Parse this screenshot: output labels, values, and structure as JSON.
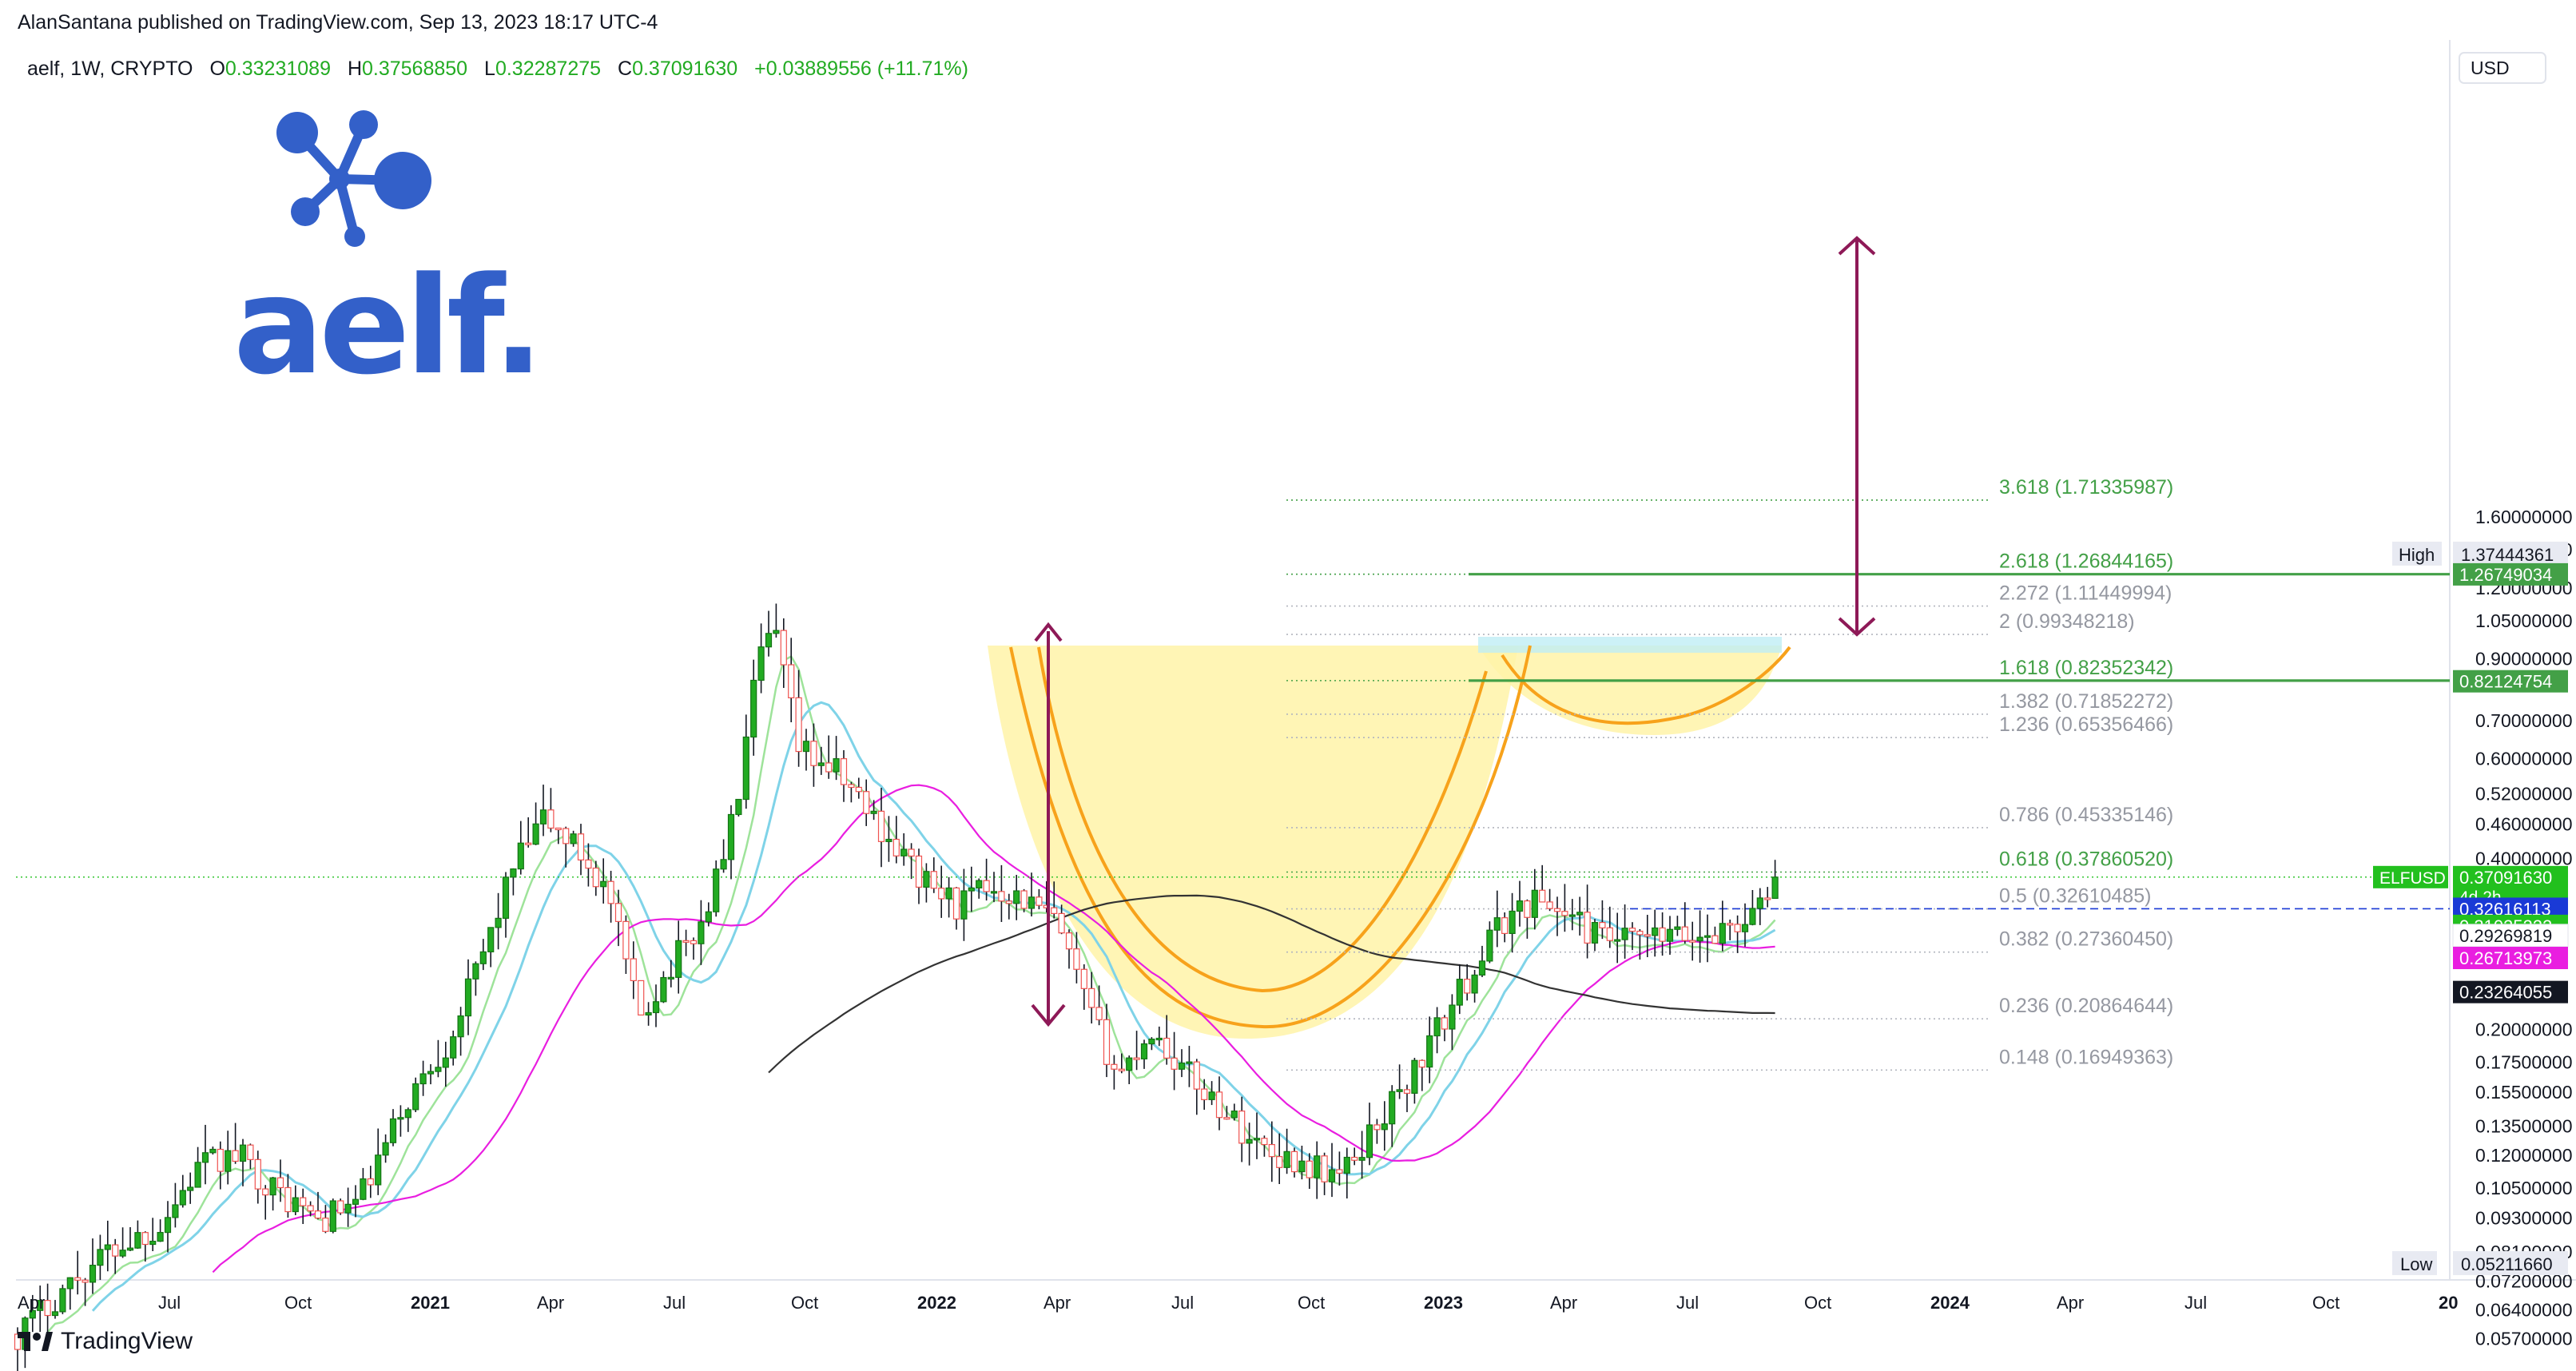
{
  "header": {
    "published_line": "AlanSantana published on TradingView.com, Sep 13, 2023 18:17 UTC-4"
  },
  "legend": {
    "symbol": "aelf, 1W, CRYPTO",
    "o_label": "O",
    "o_value": "0.33231089",
    "h_label": "H",
    "h_value": "0.37568850",
    "l_label": "L",
    "l_value": "0.32287275",
    "c_label": "C",
    "c_value": "0.37091630",
    "change": "+0.03889556 (+11.71%)"
  },
  "logo": {
    "wordmark": "aelf."
  },
  "footer": {
    "brand": "TradingView"
  },
  "colors": {
    "up": "#22ab22",
    "down": "#ef5350",
    "accent_green": "#43a047",
    "magenta": "#e91ee0",
    "light_blue": "#7fd3e8",
    "dark_ma": "#333333",
    "yellow_fill": "#fff3a8",
    "orange": "#f7a21b",
    "arrow": "#8e1957",
    "logo_blue": "#3360c9"
  },
  "price_axis": {
    "currency": "USD",
    "ticks": [
      "1.60000000",
      "1.40000000",
      "1.20000000",
      "1.05000000",
      "0.90000000",
      "0.70000000",
      "0.60000000",
      "0.52000000",
      "0.46000000",
      "0.40000000",
      "0.20000000",
      "0.17500000",
      "0.15500000",
      "0.13500000",
      "0.12000000",
      "0.10500000",
      "0.09300000",
      "0.08100000",
      "0.07200000",
      "0.06400000",
      "0.05700000"
    ],
    "high_label": "High",
    "high_value": "1.37444361",
    "low_label": "Low",
    "low_value": "0.05211660",
    "tags": [
      {
        "value": "1.26749034",
        "color": "#43a047"
      },
      {
        "value": "0.82124754",
        "color": "#43a047"
      },
      {
        "value": "0.37091630",
        "color": "#22c01e",
        "sub": "4d 2h",
        "prefix": "ELFUSD"
      },
      {
        "value": "0.32616113",
        "color": "#1a3ad6"
      },
      {
        "value": "0.31025222",
        "color": "#22c01e"
      },
      {
        "value": "0.29269819",
        "color": "#ffffff"
      },
      {
        "value": "0.26713973",
        "color": "#e91ee0"
      },
      {
        "value": "0.23264055",
        "color": "#131722"
      }
    ]
  },
  "time_axis": {
    "labels": [
      "Apr",
      "Jul",
      "Oct",
      "2021",
      "Apr",
      "Jul",
      "Oct",
      "2022",
      "Apr",
      "Jul",
      "Oct",
      "2023",
      "Apr",
      "Jul",
      "Oct",
      "2024",
      "Apr",
      "Jul",
      "Oct",
      "20"
    ]
  },
  "chart_data": {
    "type": "candlestick",
    "symbol": "ELFUSD",
    "timeframe": "1W",
    "ylim": [
      0.0521166,
      1.37444361
    ],
    "y_scale": "log",
    "grid": false,
    "fib_levels": [
      {
        "ratio": "3.618",
        "price": 1.71335987,
        "label": "3.618 (1.71335987)"
      },
      {
        "ratio": "2.618",
        "price": 1.26844165,
        "label": "2.618 (1.26844165)"
      },
      {
        "ratio": "2.272",
        "price": 1.11449994,
        "label": "2.272 (1.11449994)"
      },
      {
        "ratio": "2",
        "price": 0.99348218,
        "label": "2 (0.99348218)"
      },
      {
        "ratio": "1.618",
        "price": 0.82352342,
        "label": "1.618 (0.82352342)"
      },
      {
        "ratio": "1.382",
        "price": 0.71852272,
        "label": "1.382 (0.71852272)"
      },
      {
        "ratio": "1.236",
        "price": 0.65356466,
        "label": "1.236 (0.65356466)"
      },
      {
        "ratio": "0.786",
        "price": 0.45335146,
        "label": "0.786 (0.45335146)"
      },
      {
        "ratio": "0.618",
        "price": 0.3786052,
        "label": "0.618 (0.37860520)"
      },
      {
        "ratio": "0.5",
        "price": 0.32610485,
        "label": "0.5 (0.32610485)"
      },
      {
        "ratio": "0.382",
        "price": 0.2736045,
        "label": "0.382 (0.27360450)"
      },
      {
        "ratio": "0.236",
        "price": 0.20864644,
        "label": "0.236 (0.20864644)"
      },
      {
        "ratio": "0.148",
        "price": 0.16949363,
        "label": "0.148 (0.16949363)"
      }
    ],
    "last_close": 0.3709163
  }
}
